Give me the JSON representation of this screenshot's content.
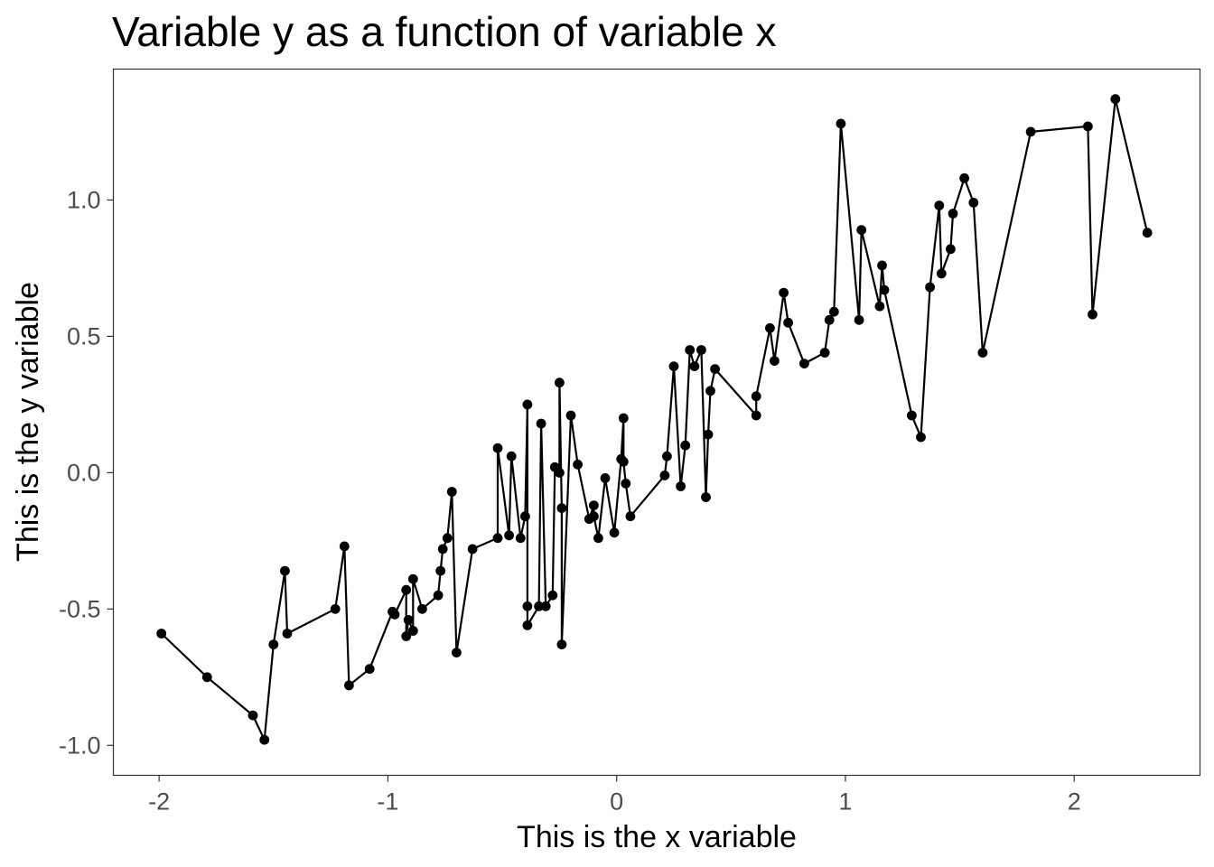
{
  "chart_data": {
    "type": "line",
    "title": "Variable y as a function of variable x",
    "xlabel": "This is the x variable",
    "ylabel": "This is the y variable",
    "xlim": [
      -2.2,
      2.55
    ],
    "ylim": [
      -1.11,
      1.48
    ],
    "x_ticks": [
      -2,
      -1,
      0,
      1,
      2
    ],
    "x_tick_labels": [
      "-2",
      "-1",
      "0",
      "1",
      "2"
    ],
    "y_ticks": [
      -1.0,
      -0.5,
      0.0,
      0.5,
      1.0
    ],
    "y_tick_labels": [
      "-1.0",
      "-0.5",
      "0.0",
      "0.5",
      "1.0"
    ],
    "grid": false,
    "markers": true,
    "line_color": "#000000",
    "marker_color": "#000000",
    "series": [
      {
        "x": [
          -1.99,
          -1.79,
          -1.59,
          -1.54,
          -1.5,
          -1.45,
          -1.44,
          -1.23,
          -1.19,
          -1.17,
          -1.08,
          -0.98,
          -0.97,
          -0.92,
          -0.92,
          -0.91,
          -0.89,
          -0.89,
          -0.85,
          -0.78,
          -0.77,
          -0.76,
          -0.74,
          -0.72,
          -0.7,
          -0.63,
          -0.52,
          -0.52,
          -0.47,
          -0.46,
          -0.42,
          -0.4,
          -0.39,
          -0.39,
          -0.39,
          -0.34,
          -0.33,
          -0.31,
          -0.28,
          -0.27,
          -0.25,
          -0.25,
          -0.24,
          -0.24,
          -0.2,
          -0.17,
          -0.12,
          -0.1,
          -0.1,
          -0.08,
          -0.05,
          -0.01,
          0.02,
          0.03,
          0.03,
          0.04,
          0.06,
          0.21,
          0.22,
          0.25,
          0.28,
          0.3,
          0.32,
          0.34,
          0.37,
          0.39,
          0.4,
          0.41,
          0.43,
          0.61,
          0.61,
          0.67,
          0.69,
          0.73,
          0.75,
          0.82,
          0.91,
          0.93,
          0.95,
          0.98,
          1.06,
          1.07,
          1.15,
          1.16,
          1.17,
          1.29,
          1.33,
          1.37,
          1.41,
          1.42,
          1.46,
          1.47,
          1.52,
          1.56,
          1.6,
          1.81,
          2.06,
          2.08,
          2.18,
          2.32
        ],
        "y": [
          -0.59,
          -0.75,
          -0.89,
          -0.98,
          -0.63,
          -0.36,
          -0.59,
          -0.5,
          -0.27,
          -0.78,
          -0.72,
          -0.51,
          -0.52,
          -0.43,
          -0.6,
          -0.54,
          -0.58,
          -0.39,
          -0.5,
          -0.45,
          -0.36,
          -0.28,
          -0.24,
          -0.07,
          -0.66,
          -0.28,
          -0.24,
          0.09,
          -0.23,
          0.06,
          -0.24,
          -0.16,
          0.25,
          -0.49,
          -0.56,
          -0.49,
          0.18,
          -0.49,
          -0.45,
          0.02,
          0.0,
          0.33,
          -0.13,
          -0.63,
          0.21,
          0.03,
          -0.17,
          -0.12,
          -0.16,
          -0.24,
          -0.02,
          -0.22,
          0.05,
          0.2,
          0.04,
          -0.04,
          -0.16,
          -0.01,
          0.06,
          0.39,
          -0.05,
          0.1,
          0.45,
          0.39,
          0.45,
          -0.09,
          0.14,
          0.3,
          0.38,
          0.21,
          0.28,
          0.53,
          0.41,
          0.66,
          0.55,
          0.4,
          0.44,
          0.56,
          0.59,
          1.28,
          0.56,
          0.89,
          0.61,
          0.76,
          0.67,
          0.21,
          0.13,
          0.68,
          0.98,
          0.73,
          0.82,
          0.95,
          1.08,
          0.99,
          0.44,
          1.25,
          1.27,
          0.58,
          1.37,
          0.88
        ]
      }
    ]
  }
}
